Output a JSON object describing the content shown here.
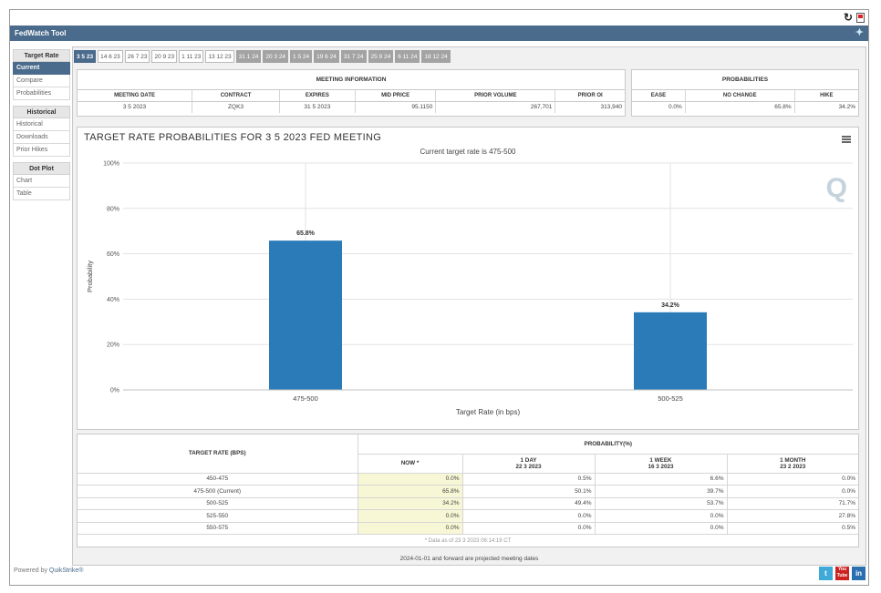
{
  "app": {
    "title": "FedWatch Tool"
  },
  "sidebar": {
    "sections": [
      {
        "header": "Target Rate",
        "items": [
          {
            "label": "Current",
            "active": true
          },
          {
            "label": "Compare"
          },
          {
            "label": "Probabilities"
          }
        ]
      },
      {
        "header": "Historical",
        "items": [
          {
            "label": "Historical"
          },
          {
            "label": "Downloads"
          },
          {
            "label": "Prior Hikes"
          }
        ]
      },
      {
        "header": "Dot Plot",
        "items": [
          {
            "label": "Chart"
          },
          {
            "label": "Table"
          }
        ]
      }
    ]
  },
  "date_tabs": [
    {
      "label": "3 5 23",
      "state": "active"
    },
    {
      "label": "14 6 23",
      "state": "normal"
    },
    {
      "label": "26 7 23",
      "state": "normal"
    },
    {
      "label": "20 9 23",
      "state": "normal"
    },
    {
      "label": "1 11 23",
      "state": "normal"
    },
    {
      "label": "13 12 23",
      "state": "normal"
    },
    {
      "label": "31 1 24",
      "state": "past"
    },
    {
      "label": "20 3 24",
      "state": "past"
    },
    {
      "label": "1 5 24",
      "state": "past"
    },
    {
      "label": "19 6 24",
      "state": "past"
    },
    {
      "label": "31 7 24",
      "state": "past"
    },
    {
      "label": "25 9 24",
      "state": "past"
    },
    {
      "label": "6 11 24",
      "state": "past"
    },
    {
      "label": "18 12 24",
      "state": "past"
    }
  ],
  "meeting_info": {
    "title": "MEETING INFORMATION",
    "headers": [
      "MEETING DATE",
      "CONTRACT",
      "EXPIRES",
      "MID PRICE",
      "PRIOR VOLUME",
      "PRIOR OI"
    ],
    "row": [
      "3 5 2023",
      "ZQK3",
      "31 5 2023",
      "95.1150",
      "267,701",
      "313,940"
    ]
  },
  "probabilities_box": {
    "title": "PROBABILITIES",
    "headers": [
      "EASE",
      "NO CHANGE",
      "HIKE"
    ],
    "row": [
      "0.0%",
      "65.8%",
      "34.2%"
    ]
  },
  "chart_data": {
    "type": "bar",
    "title": "TARGET RATE PROBABILITIES FOR 3 5 2023 FED MEETING",
    "subtitle": "Current target rate is 475-500",
    "categories": [
      "475-500",
      "500-525"
    ],
    "values": [
      65.8,
      34.2
    ],
    "data_labels": [
      "65.8%",
      "34.2%"
    ],
    "xlabel": "Target Rate (in bps)",
    "ylabel": "Probability",
    "ylim": [
      0,
      100
    ],
    "yticks": [
      "0%",
      "20%",
      "40%",
      "60%",
      "80%",
      "100%"
    ],
    "bar_color": "#2b7bb9",
    "grid": true
  },
  "prob_table": {
    "rate_header": "TARGET RATE (BPS)",
    "prob_header": "PROBABILITY(%)",
    "columns": [
      {
        "label": "NOW *",
        "date": ""
      },
      {
        "label": "1 DAY",
        "date": "22 3 2023"
      },
      {
        "label": "1 WEEK",
        "date": "16 3 2023"
      },
      {
        "label": "1 MONTH",
        "date": "23 2 2023"
      }
    ],
    "rows": [
      {
        "rate": "450-475",
        "values": [
          "0.0%",
          "0.5%",
          "6.6%",
          "0.0%"
        ]
      },
      {
        "rate": "475-500 (Current)",
        "values": [
          "65.8%",
          "50.1%",
          "39.7%",
          "0.0%"
        ]
      },
      {
        "rate": "500-525",
        "values": [
          "34.2%",
          "49.4%",
          "53.7%",
          "71.7%"
        ]
      },
      {
        "rate": "525-550",
        "values": [
          "0.0%",
          "0.0%",
          "0.0%",
          "27.8%"
        ]
      },
      {
        "rate": "550-575",
        "values": [
          "0.0%",
          "0.0%",
          "0.0%",
          "0.5%"
        ]
      }
    ],
    "note": "* Data as of 23 3 2023 06:14:19 CT"
  },
  "footer": {
    "projected_note": "2024-01-01 and forward are projected meeting dates",
    "powered_prefix": "Powered by ",
    "powered_brand": "QuikStrike®"
  },
  "social": {
    "twitter": "t",
    "youtube": "You Tube",
    "linkedin": "in"
  },
  "colors": {
    "accent": "#4a6b8c",
    "bar": "#2b7bb9",
    "now_cell": "#f7f7d5"
  }
}
